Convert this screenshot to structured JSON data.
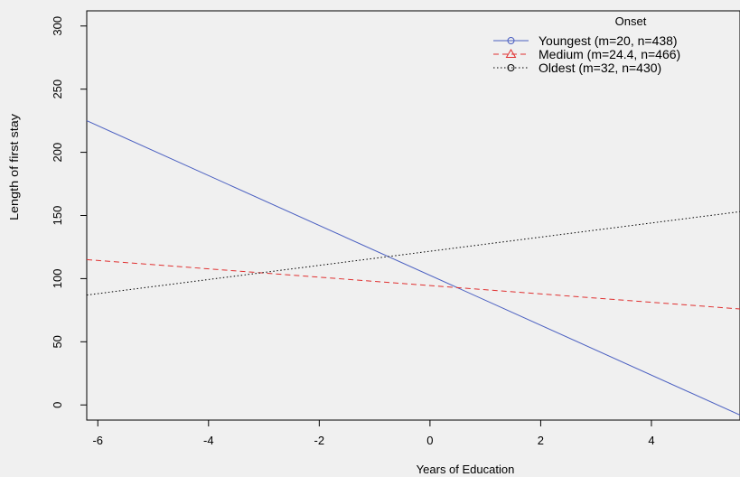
{
  "chart_data": {
    "type": "line",
    "xlabel": "Years of Education",
    "ylabel": "Length of first stay",
    "xlim": [
      -6.2,
      5.6
    ],
    "ylim": [
      -12,
      312
    ],
    "x_ticks": [
      -6,
      -4,
      -2,
      0,
      2,
      4
    ],
    "x_tick_labels": [
      "-6",
      "-4",
      "-2",
      "0",
      "2",
      "4"
    ],
    "y_ticks": [
      0,
      50,
      100,
      150,
      200,
      250,
      300
    ],
    "y_tick_labels": [
      "0",
      "50",
      "100",
      "150",
      "200",
      "250",
      "300"
    ],
    "grid": false,
    "legend": {
      "title": "Onset",
      "placement": "top-right"
    },
    "series": [
      {
        "name": "Youngest (m=20, n=438)",
        "color": "#4a5fc1",
        "dash": "solid",
        "marker": "circle",
        "x": [
          -6.2,
          5.6
        ],
        "y": [
          225,
          -8
        ]
      },
      {
        "name": "Medium (m=24.4, n=466)",
        "color": "#e03030",
        "dash": "dashed",
        "marker": "triangle",
        "x": [
          -6.2,
          5.6
        ],
        "y": [
          115,
          76
        ]
      },
      {
        "name": "Oldest (m=32, n=430)",
        "color": "#000000",
        "dash": "dotted",
        "marker": "circle",
        "x": [
          -6.2,
          5.6
        ],
        "y": [
          87,
          153
        ]
      }
    ]
  }
}
